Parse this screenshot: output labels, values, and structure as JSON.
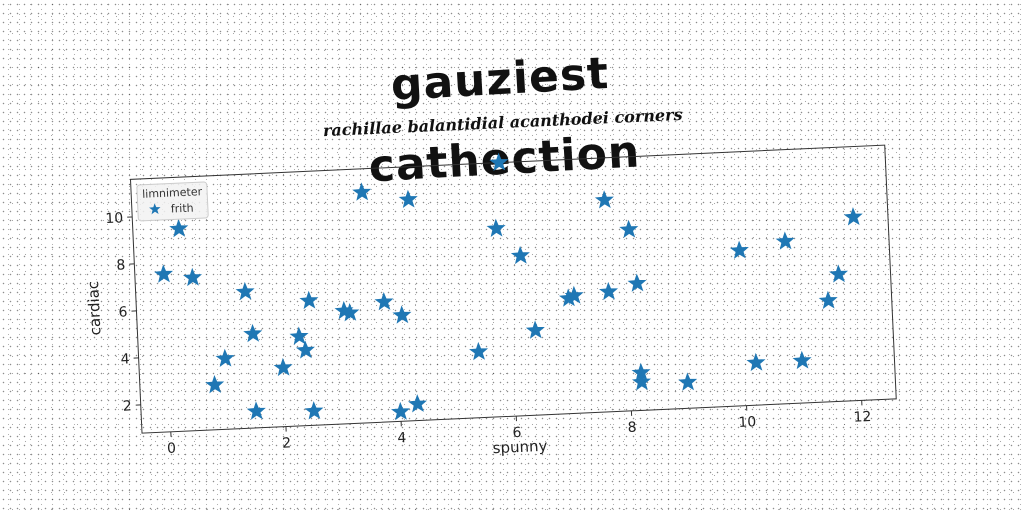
{
  "chart_data": {
    "type": "scatter",
    "title": "gauziest cathection",
    "subtitle": "rachillae balantidial acanthodei corners",
    "xlabel": "spunny",
    "ylabel": "cardiac",
    "xlim": [
      -0.5,
      12.6
    ],
    "ylim": [
      0.8,
      11.6
    ],
    "xticks": [
      0,
      2,
      4,
      6,
      8,
      10,
      12
    ],
    "yticks": [
      2,
      4,
      6,
      8,
      10
    ],
    "grid": false,
    "legend": {
      "title": "limnimeter",
      "position": "top-left"
    },
    "marker": "star",
    "series": [
      {
        "name": "frith",
        "color": "#1f77b4",
        "points": [
          {
            "x": 0.0,
            "y": 7.5
          },
          {
            "x": 0.3,
            "y": 9.4
          },
          {
            "x": 0.5,
            "y": 7.3
          },
          {
            "x": 0.8,
            "y": 2.7
          },
          {
            "x": 1.0,
            "y": 3.8
          },
          {
            "x": 1.4,
            "y": 6.6
          },
          {
            "x": 1.5,
            "y": 4.8
          },
          {
            "x": 1.5,
            "y": 1.5
          },
          {
            "x": 2.0,
            "y": 3.3
          },
          {
            "x": 2.3,
            "y": 4.6
          },
          {
            "x": 2.4,
            "y": 4.0
          },
          {
            "x": 2.5,
            "y": 6.1
          },
          {
            "x": 2.5,
            "y": 1.4
          },
          {
            "x": 3.1,
            "y": 5.6
          },
          {
            "x": 3.2,
            "y": 5.5
          },
          {
            "x": 3.5,
            "y": 10.6
          },
          {
            "x": 3.8,
            "y": 5.9
          },
          {
            "x": 4.1,
            "y": 5.3
          },
          {
            "x": 4.3,
            "y": 10.2
          },
          {
            "x": 4.0,
            "y": 1.2
          },
          {
            "x": 4.3,
            "y": 1.5
          },
          {
            "x": 5.4,
            "y": 3.6
          },
          {
            "x": 5.8,
            "y": 8.8
          },
          {
            "x": 5.9,
            "y": 11.6
          },
          {
            "x": 6.2,
            "y": 7.6
          },
          {
            "x": 6.4,
            "y": 4.4
          },
          {
            "x": 7.0,
            "y": 5.7
          },
          {
            "x": 7.1,
            "y": 5.8
          },
          {
            "x": 7.7,
            "y": 9.8
          },
          {
            "x": 7.7,
            "y": 5.9
          },
          {
            "x": 8.1,
            "y": 8.5
          },
          {
            "x": 8.2,
            "y": 6.2
          },
          {
            "x": 8.2,
            "y": 2.4
          },
          {
            "x": 8.2,
            "y": 2.0
          },
          {
            "x": 9.0,
            "y": 1.9
          },
          {
            "x": 10.0,
            "y": 7.4
          },
          {
            "x": 10.2,
            "y": 2.6
          },
          {
            "x": 10.8,
            "y": 7.7
          },
          {
            "x": 11.0,
            "y": 2.6
          },
          {
            "x": 11.5,
            "y": 5.1
          },
          {
            "x": 11.7,
            "y": 6.2
          },
          {
            "x": 12.0,
            "y": 8.6
          }
        ]
      }
    ]
  }
}
